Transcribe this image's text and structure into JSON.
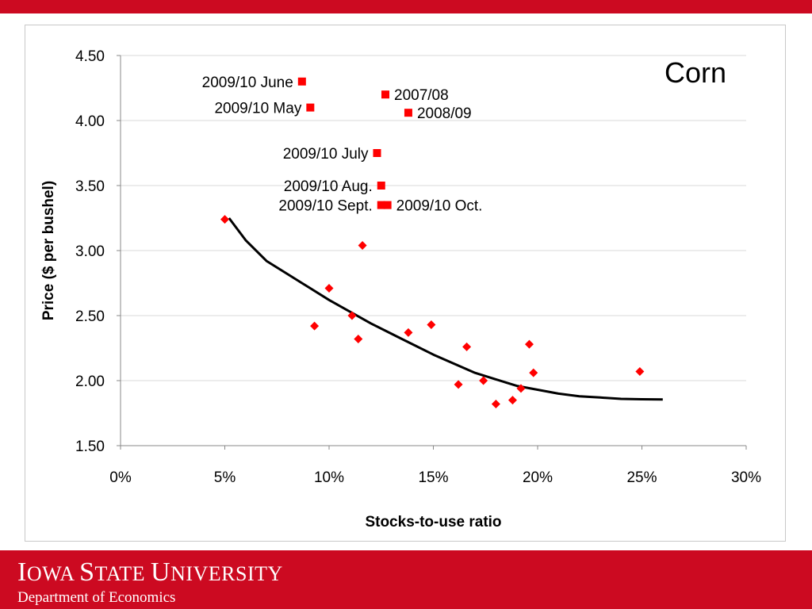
{
  "slide": {
    "university": {
      "parts": [
        "I",
        "OWA ",
        "S",
        "TATE ",
        "U",
        "NIVERSITY"
      ]
    },
    "department": "Department of Economics",
    "colors": {
      "brand_red": "#cc0a21",
      "marker_red": "#ff0000",
      "curve": "#000000",
      "grid": "#d9d9d9"
    }
  },
  "chart_data": {
    "type": "scatter",
    "title": "Corn",
    "xlabel": "Stocks-to-use ratio",
    "ylabel": "Price ($ per bushel)",
    "xlim": [
      0,
      0.3
    ],
    "ylim": [
      1.5,
      4.5
    ],
    "x_ticks": [
      0,
      0.05,
      0.1,
      0.15,
      0.2,
      0.25,
      0.3
    ],
    "x_tick_labels": [
      "0%",
      "5%",
      "10%",
      "15%",
      "20%",
      "25%",
      "30%"
    ],
    "y_ticks": [
      1.5,
      2.0,
      2.5,
      3.0,
      3.5,
      4.0,
      4.5
    ],
    "y_tick_labels": [
      "1.50",
      "2.00",
      "2.50",
      "3.00",
      "3.50",
      "4.00",
      "4.50"
    ],
    "grid": "horizontal",
    "legend": "none",
    "series": [
      {
        "marker": "diamond",
        "color": "#ff0000",
        "points": [
          {
            "x": 0.05,
            "y": 3.24
          },
          {
            "x": 0.093,
            "y": 2.42
          },
          {
            "x": 0.1,
            "y": 2.71
          },
          {
            "x": 0.111,
            "y": 2.5
          },
          {
            "x": 0.114,
            "y": 2.32
          },
          {
            "x": 0.116,
            "y": 3.04
          },
          {
            "x": 0.138,
            "y": 2.37
          },
          {
            "x": 0.149,
            "y": 2.43
          },
          {
            "x": 0.162,
            "y": 1.97
          },
          {
            "x": 0.166,
            "y": 2.26
          },
          {
            "x": 0.174,
            "y": 2.0
          },
          {
            "x": 0.18,
            "y": 1.82
          },
          {
            "x": 0.188,
            "y": 1.85
          },
          {
            "x": 0.192,
            "y": 1.94
          },
          {
            "x": 0.196,
            "y": 2.28
          },
          {
            "x": 0.198,
            "y": 2.06
          },
          {
            "x": 0.249,
            "y": 2.07
          }
        ]
      },
      {
        "marker": "square",
        "color": "#ff0000",
        "points": [
          {
            "label": "2009/10 June",
            "x": 0.087,
            "y": 4.3
          },
          {
            "label": "2009/10 May",
            "x": 0.091,
            "y": 4.1
          },
          {
            "label": "2007/08",
            "x": 0.127,
            "y": 4.2
          },
          {
            "label": "2008/09",
            "x": 0.138,
            "y": 4.06
          },
          {
            "label": "2009/10 July",
            "x": 0.123,
            "y": 3.75
          },
          {
            "label": "2009/10 Aug.",
            "x": 0.125,
            "y": 3.5
          },
          {
            "label": "2009/10 Sept.",
            "x": 0.125,
            "y": 3.35
          },
          {
            "label": "2009/10 Oct.",
            "x": 0.128,
            "y": 3.35
          }
        ]
      }
    ],
    "trend_curve": {
      "color": "#000000",
      "points": [
        {
          "x": 0.052,
          "y": 3.25
        },
        {
          "x": 0.06,
          "y": 3.08
        },
        {
          "x": 0.07,
          "y": 2.92
        },
        {
          "x": 0.08,
          "y": 2.82
        },
        {
          "x": 0.09,
          "y": 2.72
        },
        {
          "x": 0.1,
          "y": 2.62
        },
        {
          "x": 0.11,
          "y": 2.53
        },
        {
          "x": 0.12,
          "y": 2.44
        },
        {
          "x": 0.13,
          "y": 2.36
        },
        {
          "x": 0.14,
          "y": 2.28
        },
        {
          "x": 0.15,
          "y": 2.2
        },
        {
          "x": 0.16,
          "y": 2.13
        },
        {
          "x": 0.17,
          "y": 2.06
        },
        {
          "x": 0.18,
          "y": 2.01
        },
        {
          "x": 0.19,
          "y": 1.96
        },
        {
          "x": 0.2,
          "y": 1.93
        },
        {
          "x": 0.21,
          "y": 1.9
        },
        {
          "x": 0.22,
          "y": 1.88
        },
        {
          "x": 0.23,
          "y": 1.87
        },
        {
          "x": 0.24,
          "y": 1.86
        },
        {
          "x": 0.25,
          "y": 1.857
        },
        {
          "x": 0.26,
          "y": 1.855
        }
      ]
    }
  }
}
